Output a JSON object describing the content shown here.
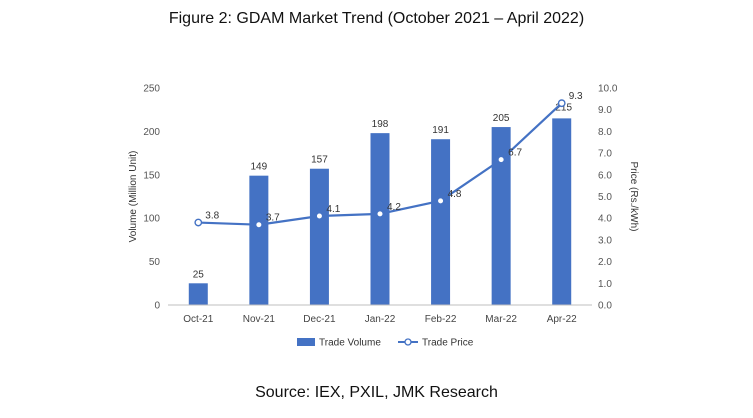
{
  "figure": {
    "title": "Figure 2: GDAM Market Trend (October 2021 – April 2022)",
    "source": "Source: IEX, PXIL, JMK Research"
  },
  "chart_data": {
    "type": "bar",
    "categories": [
      "Oct-21",
      "Nov-21",
      "Dec-21",
      "Jan-22",
      "Feb-22",
      "Mar-22",
      "Apr-22"
    ],
    "series": [
      {
        "name": "Trade Volume",
        "type": "bar",
        "axis": "left",
        "color": "#4472C4",
        "values": [
          25,
          149,
          157,
          198,
          191,
          205,
          215
        ],
        "labels": [
          "25",
          "149",
          "157",
          "198",
          "191",
          "205",
          "215"
        ]
      },
      {
        "name": "Trade Price",
        "type": "line",
        "axis": "right",
        "color": "#4472C4",
        "values": [
          3.8,
          3.7,
          4.1,
          4.2,
          4.8,
          6.7,
          9.3
        ],
        "labels": [
          "3.8",
          "3.7",
          "4.1",
          "4.2",
          "4.8",
          "6.7",
          "9.3"
        ]
      }
    ],
    "ylabel": "Volume (Million Unit)",
    "ylabel_right": "Price (Rs./kWh)",
    "ylim": [
      0,
      250
    ],
    "ylim_right": [
      0,
      10
    ],
    "yticks": [
      "0",
      "50",
      "100",
      "150",
      "200",
      "250"
    ],
    "yticks_right": [
      "0.0",
      "1.0",
      "2.0",
      "3.0",
      "4.0",
      "5.0",
      "6.0",
      "7.0",
      "8.0",
      "9.0",
      "10.0"
    ],
    "grid": false,
    "legend_position": "bottom"
  }
}
